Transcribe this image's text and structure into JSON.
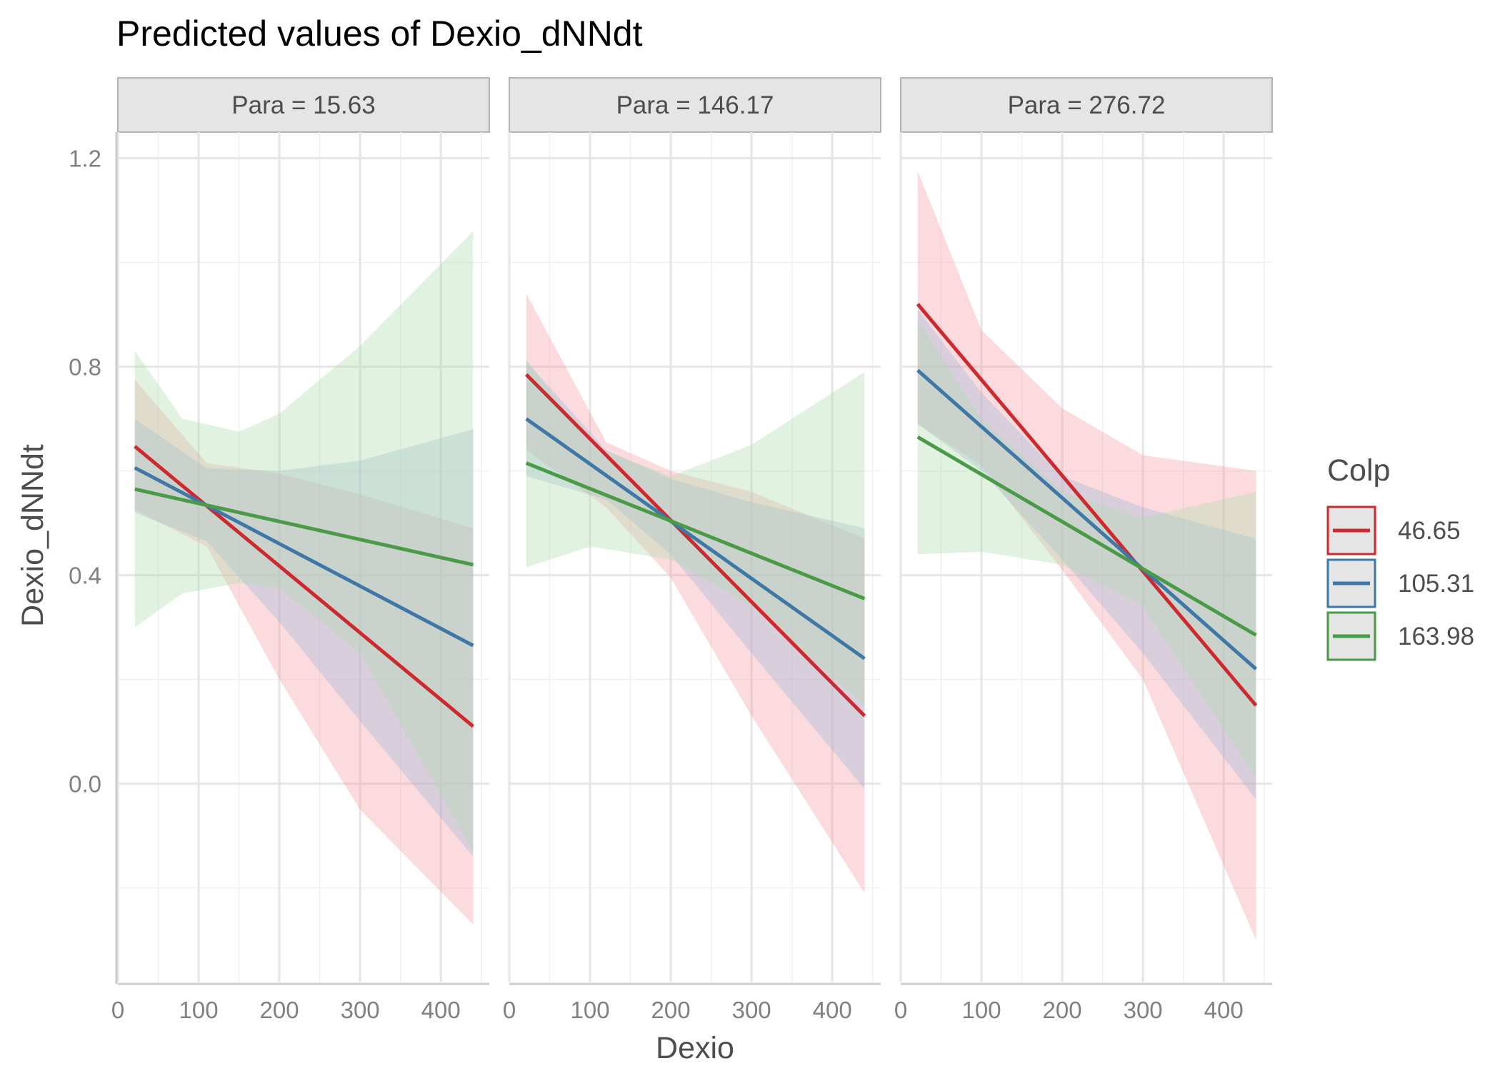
{
  "chart_data": {
    "type": "line",
    "title": "Predicted values of Dexio_dNNdt",
    "xlabel": "Dexio",
    "ylabel": "Dexio_dNNdt",
    "xlim": [
      0,
      460
    ],
    "ylim": [
      -0.38,
      1.25
    ],
    "x_ticks": [
      0,
      100,
      200,
      300,
      400
    ],
    "y_ticks": [
      0.0,
      0.4,
      0.8,
      1.2
    ],
    "y_tick_labels": [
      "0.0",
      "0.4",
      "0.8",
      "1.2"
    ],
    "grid": true,
    "legend": {
      "title": "Colp",
      "position": "right",
      "entries": [
        "46.65",
        "105.31",
        "163.98"
      ]
    },
    "colors": {
      "46.65": "#cd2a2f",
      "105.31": "#3f77a6",
      "163.98": "#4a9a48"
    },
    "band_colors": {
      "46.65": "#f7a0a8",
      "105.31": "#9fb8d9",
      "163.98": "#b4dcb0"
    },
    "panels": [
      {
        "label": "Para = 15.63",
        "series": [
          {
            "name": "46.65",
            "x": [
              21,
              440
            ],
            "y": [
              0.647,
              0.11
            ],
            "ci_x": [
              21,
              110,
              200,
              300,
              440
            ],
            "ci_lower": [
              0.525,
              0.455,
              0.2,
              -0.05,
              -0.27
            ],
            "ci_upper": [
              0.775,
              0.615,
              0.595,
              0.555,
              0.49
            ]
          },
          {
            "name": "105.31",
            "x": [
              21,
              440
            ],
            "y": [
              0.606,
              0.265
            ],
            "ci_x": [
              21,
              110,
              200,
              300,
              440
            ],
            "ci_lower": [
              0.52,
              0.465,
              0.31,
              0.12,
              -0.14
            ],
            "ci_upper": [
              0.7,
              0.605,
              0.6,
              0.62,
              0.68
            ]
          },
          {
            "name": "163.98",
            "x": [
              21,
              440
            ],
            "y": [
              0.565,
              0.42
            ],
            "ci_x": [
              21,
              80,
              150,
              200,
              300,
              440
            ],
            "ci_lower": [
              0.3,
              0.365,
              0.385,
              0.375,
              0.25,
              -0.13
            ],
            "ci_upper": [
              0.83,
              0.7,
              0.675,
              0.71,
              0.84,
              1.06
            ]
          }
        ]
      },
      {
        "label": "Para = 146.17",
        "series": [
          {
            "name": "46.65",
            "x": [
              21,
              440
            ],
            "y": [
              0.785,
              0.13
            ],
            "ci_x": [
              21,
              120,
              200,
              300,
              440
            ],
            "ci_lower": [
              0.64,
              0.53,
              0.395,
              0.13,
              -0.21
            ],
            "ci_upper": [
              0.94,
              0.655,
              0.6,
              0.56,
              0.47
            ]
          },
          {
            "name": "105.31",
            "x": [
              21,
              440
            ],
            "y": [
              0.7,
              0.24
            ],
            "ci_x": [
              21,
              120,
              200,
              300,
              440
            ],
            "ci_lower": [
              0.59,
              0.545,
              0.44,
              0.25,
              -0.01
            ],
            "ci_upper": [
              0.81,
              0.64,
              0.585,
              0.54,
              0.49
            ]
          },
          {
            "name": "163.98",
            "x": [
              21,
              440
            ],
            "y": [
              0.615,
              0.355
            ],
            "ci_x": [
              21,
              100,
              200,
              300,
              440
            ],
            "ci_lower": [
              0.415,
              0.455,
              0.43,
              0.34,
              0.15
            ],
            "ci_upper": [
              0.815,
              0.65,
              0.59,
              0.65,
              0.79
            ]
          }
        ]
      },
      {
        "label": "Para = 276.72",
        "series": [
          {
            "name": "46.65",
            "x": [
              21,
              440
            ],
            "y": [
              0.92,
              0.15
            ],
            "ci_x": [
              21,
              100,
              200,
              300,
              440
            ],
            "ci_lower": [
              0.69,
              0.61,
              0.41,
              0.2,
              -0.3
            ],
            "ci_upper": [
              1.175,
              0.87,
              0.72,
              0.63,
              0.6
            ]
          },
          {
            "name": "105.31",
            "x": [
              21,
              440
            ],
            "y": [
              0.793,
              0.22
            ],
            "ci_x": [
              21,
              100,
              200,
              300,
              440
            ],
            "ci_lower": [
              0.69,
              0.6,
              0.43,
              0.25,
              -0.03
            ],
            "ci_upper": [
              0.91,
              0.75,
              0.59,
              0.53,
              0.47
            ]
          },
          {
            "name": "163.98",
            "x": [
              21,
              440
            ],
            "y": [
              0.665,
              0.285
            ],
            "ci_x": [
              21,
              100,
              200,
              300,
              440
            ],
            "ci_lower": [
              0.44,
              0.445,
              0.42,
              0.34,
              0.01
            ],
            "ci_upper": [
              0.89,
              0.7,
              0.56,
              0.51,
              0.56
            ]
          }
        ]
      }
    ]
  }
}
